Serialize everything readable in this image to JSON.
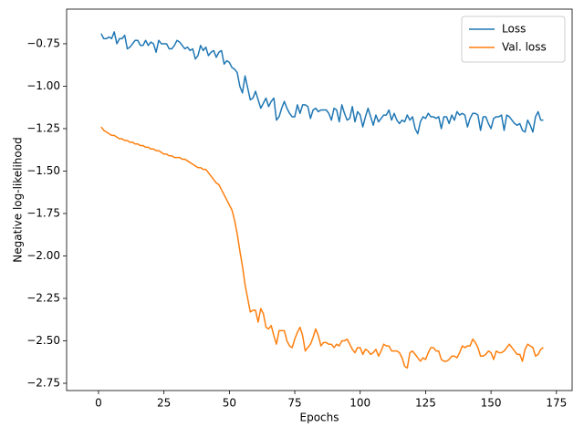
{
  "chart_data": {
    "type": "line",
    "x_label": "Epochs",
    "y_label": "Negative log-likelihood",
    "x": [
      1,
      2,
      3,
      4,
      5,
      6,
      7,
      8,
      9,
      10,
      11,
      12,
      13,
      14,
      15,
      16,
      17,
      18,
      19,
      20,
      21,
      22,
      23,
      24,
      25,
      26,
      27,
      28,
      29,
      30,
      31,
      32,
      33,
      34,
      35,
      36,
      37,
      38,
      39,
      40,
      41,
      42,
      43,
      44,
      45,
      46,
      47,
      48,
      49,
      50,
      51,
      52,
      53,
      54,
      55,
      56,
      57,
      58,
      59,
      60,
      61,
      62,
      63,
      64,
      65,
      66,
      67,
      68,
      69,
      70,
      71,
      72,
      73,
      74,
      75,
      76,
      77,
      78,
      79,
      80,
      81,
      82,
      83,
      84,
      85,
      86,
      87,
      88,
      89,
      90,
      91,
      92,
      93,
      94,
      95,
      96,
      97,
      98,
      99,
      100,
      101,
      102,
      103,
      104,
      105,
      106,
      107,
      108,
      109,
      110,
      111,
      112,
      113,
      114,
      115,
      116,
      117,
      118,
      119,
      120,
      121,
      122,
      123,
      124,
      125,
      126,
      127,
      128,
      129,
      130,
      131,
      132,
      133,
      134,
      135,
      136,
      137,
      138,
      139,
      140,
      141,
      142,
      143,
      144,
      145,
      146,
      147,
      148,
      149,
      150,
      151,
      152,
      153,
      154,
      155,
      156,
      157,
      158,
      159,
      160,
      161,
      162,
      163,
      164,
      165,
      166,
      167,
      168,
      169,
      170
    ],
    "series": [
      {
        "name": "Loss",
        "color": "#1f77b4",
        "values": [
          -0.69,
          -0.72,
          -0.72,
          -0.71,
          -0.72,
          -0.68,
          -0.75,
          -0.72,
          -0.72,
          -0.7,
          -0.78,
          -0.77,
          -0.75,
          -0.73,
          -0.73,
          -0.76,
          -0.76,
          -0.73,
          -0.76,
          -0.74,
          -0.75,
          -0.8,
          -0.73,
          -0.75,
          -0.75,
          -0.75,
          -0.78,
          -0.78,
          -0.76,
          -0.73,
          -0.74,
          -0.76,
          -0.78,
          -0.77,
          -0.79,
          -0.78,
          -0.84,
          -0.82,
          -0.76,
          -0.79,
          -0.77,
          -0.82,
          -0.8,
          -0.79,
          -0.83,
          -0.8,
          -0.79,
          -0.87,
          -0.85,
          -0.86,
          -0.89,
          -0.9,
          -0.92,
          -1.0,
          -1.04,
          -0.94,
          -1.01,
          -1.08,
          -1.07,
          -1.03,
          -1.08,
          -1.13,
          -1.1,
          -1.07,
          -1.12,
          -1.09,
          -1.07,
          -1.2,
          -1.18,
          -1.13,
          -1.09,
          -1.13,
          -1.16,
          -1.18,
          -1.18,
          -1.11,
          -1.16,
          -1.11,
          -1.11,
          -1.12,
          -1.19,
          -1.14,
          -1.13,
          -1.15,
          -1.14,
          -1.14,
          -1.14,
          -1.16,
          -1.2,
          -1.13,
          -1.14,
          -1.21,
          -1.11,
          -1.16,
          -1.2,
          -1.19,
          -1.12,
          -1.21,
          -1.15,
          -1.17,
          -1.24,
          -1.18,
          -1.13,
          -1.18,
          -1.23,
          -1.17,
          -1.21,
          -1.19,
          -1.17,
          -1.17,
          -1.14,
          -1.2,
          -1.16,
          -1.2,
          -1.22,
          -1.2,
          -1.21,
          -1.17,
          -1.2,
          -1.18,
          -1.25,
          -1.28,
          -1.21,
          -1.18,
          -1.19,
          -1.16,
          -1.18,
          -1.18,
          -1.19,
          -1.18,
          -1.25,
          -1.18,
          -1.18,
          -1.22,
          -1.17,
          -1.2,
          -1.15,
          -1.17,
          -1.16,
          -1.17,
          -1.24,
          -1.19,
          -1.16,
          -1.16,
          -1.17,
          -1.26,
          -1.18,
          -1.18,
          -1.22,
          -1.25,
          -1.19,
          -1.18,
          -1.18,
          -1.17,
          -1.26,
          -1.17,
          -1.18,
          -1.2,
          -1.22,
          -1.23,
          -1.22,
          -1.26,
          -1.27,
          -1.2,
          -1.23,
          -1.27,
          -1.18,
          -1.15,
          -1.2,
          -1.2
        ]
      },
      {
        "name": "Val. loss",
        "color": "#ff7f0e",
        "values": [
          -1.24,
          -1.26,
          -1.27,
          -1.28,
          -1.29,
          -1.29,
          -1.3,
          -1.31,
          -1.31,
          -1.32,
          -1.32,
          -1.33,
          -1.33,
          -1.34,
          -1.34,
          -1.35,
          -1.35,
          -1.36,
          -1.36,
          -1.37,
          -1.37,
          -1.38,
          -1.38,
          -1.39,
          -1.4,
          -1.4,
          -1.41,
          -1.41,
          -1.42,
          -1.42,
          -1.42,
          -1.43,
          -1.43,
          -1.44,
          -1.45,
          -1.46,
          -1.47,
          -1.48,
          -1.48,
          -1.49,
          -1.49,
          -1.51,
          -1.53,
          -1.55,
          -1.57,
          -1.58,
          -1.61,
          -1.64,
          -1.67,
          -1.7,
          -1.73,
          -1.79,
          -1.87,
          -1.97,
          -2.06,
          -2.17,
          -2.25,
          -2.33,
          -2.32,
          -2.32,
          -2.39,
          -2.31,
          -2.34,
          -2.42,
          -2.43,
          -2.41,
          -2.47,
          -2.52,
          -2.44,
          -2.44,
          -2.44,
          -2.5,
          -2.53,
          -2.54,
          -2.49,
          -2.45,
          -2.42,
          -2.47,
          -2.56,
          -2.54,
          -2.52,
          -2.48,
          -2.43,
          -2.47,
          -2.53,
          -2.51,
          -2.51,
          -2.52,
          -2.52,
          -2.54,
          -2.52,
          -2.53,
          -2.5,
          -2.5,
          -2.49,
          -2.52,
          -2.55,
          -2.57,
          -2.54,
          -2.54,
          -2.58,
          -2.55,
          -2.56,
          -2.58,
          -2.57,
          -2.55,
          -2.59,
          -2.56,
          -2.52,
          -2.53,
          -2.53,
          -2.56,
          -2.56,
          -2.56,
          -2.57,
          -2.6,
          -2.65,
          -2.66,
          -2.57,
          -2.56,
          -2.58,
          -2.6,
          -2.62,
          -2.6,
          -2.61,
          -2.57,
          -2.54,
          -2.54,
          -2.56,
          -2.56,
          -2.61,
          -2.62,
          -2.62,
          -2.61,
          -2.59,
          -2.59,
          -2.6,
          -2.57,
          -2.53,
          -2.54,
          -2.53,
          -2.53,
          -2.49,
          -2.51,
          -2.54,
          -2.59,
          -2.59,
          -2.58,
          -2.56,
          -2.57,
          -2.61,
          -2.56,
          -2.57,
          -2.57,
          -2.56,
          -2.54,
          -2.52,
          -2.54,
          -2.56,
          -2.58,
          -2.58,
          -2.62,
          -2.55,
          -2.52,
          -2.53,
          -2.54,
          -2.59,
          -2.58,
          -2.55,
          -2.54
        ]
      }
    ],
    "xlim": [
      -12.2,
      181
    ],
    "xticks": [
      0,
      25,
      50,
      75,
      100,
      125,
      150,
      175
    ],
    "ylim": [
      -2.793,
      -0.546
    ],
    "yticks": [
      {
        "value": -2.75,
        "label": "−2.75"
      },
      {
        "value": -2.5,
        "label": "−2.50"
      },
      {
        "value": -2.25,
        "label": "−2.25"
      },
      {
        "value": -2.0,
        "label": "−2.00"
      },
      {
        "value": -1.75,
        "label": "−1.75"
      },
      {
        "value": -1.5,
        "label": "−1.50"
      },
      {
        "value": -1.25,
        "label": "−1.25"
      },
      {
        "value": -1.0,
        "label": "−1.00"
      },
      {
        "value": -0.75,
        "label": "−0.75"
      }
    ],
    "legend": "upper right",
    "grid": false
  }
}
